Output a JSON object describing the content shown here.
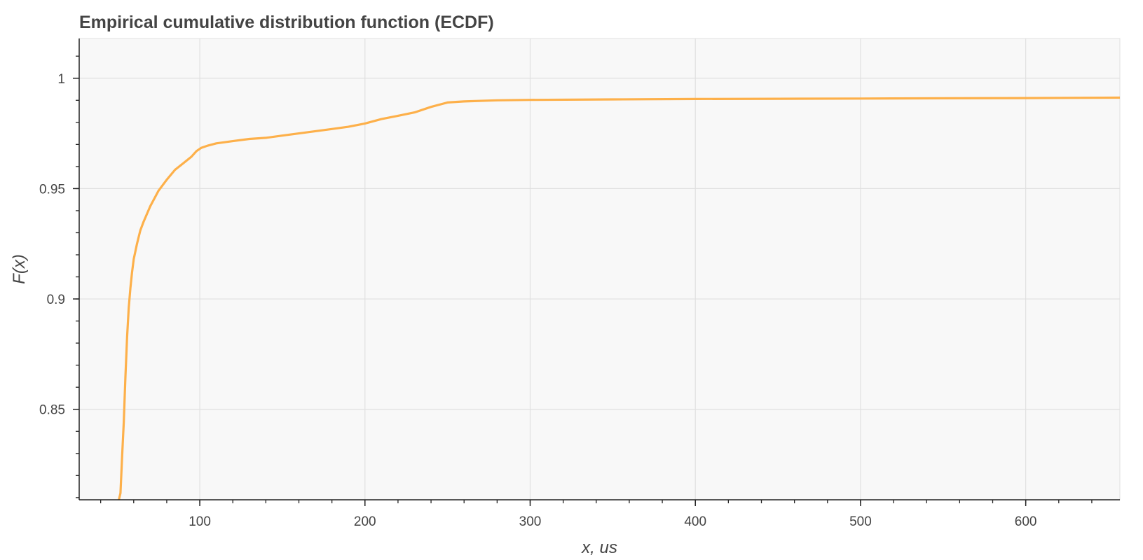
{
  "chart_data": {
    "type": "line",
    "title": "Empirical cumulative distribution function (ECDF)",
    "xlabel": "x, us",
    "ylabel": "F(x)",
    "xlim": [
      27,
      657
    ],
    "ylim": [
      0.809,
      1.018
    ],
    "grid": true,
    "x_ticks": [
      100,
      200,
      300,
      400,
      500,
      600
    ],
    "x_tick_labels": [
      "100",
      "200",
      "300",
      "400",
      "500",
      "600"
    ],
    "y_ticks": [
      0.85,
      0.9,
      0.95,
      1.0
    ],
    "y_tick_labels": [
      "0.85",
      "0.9",
      "0.95",
      "1"
    ],
    "colors": {
      "line": "#fdb04a",
      "plot_bg": "#f8f8f8",
      "grid": "#e0e0e0",
      "axis": "#222222",
      "text": "#444444"
    },
    "series": [
      {
        "x": [
          51,
          52,
          53,
          54,
          55,
          56,
          57,
          58,
          59,
          60,
          62,
          64,
          66,
          70,
          75,
          80,
          85,
          90,
          95,
          98,
          101,
          105,
          110,
          120,
          130,
          140,
          150,
          160,
          170,
          180,
          190,
          200,
          210,
          220,
          230,
          240,
          250,
          260,
          280,
          300,
          350,
          400,
          450,
          500,
          550,
          600,
          657
        ],
        "y": [
          0.809,
          0.812,
          0.829,
          0.844,
          0.865,
          0.883,
          0.896,
          0.905,
          0.912,
          0.918,
          0.925,
          0.931,
          0.935,
          0.942,
          0.949,
          0.954,
          0.9585,
          0.9615,
          0.9645,
          0.967,
          0.9685,
          0.9695,
          0.9705,
          0.9715,
          0.9725,
          0.973,
          0.974,
          0.975,
          0.976,
          0.977,
          0.978,
          0.9795,
          0.9815,
          0.983,
          0.9845,
          0.987,
          0.989,
          0.9895,
          0.99,
          0.9902,
          0.9904,
          0.9906,
          0.9907,
          0.9908,
          0.9909,
          0.991,
          0.9912
        ]
      }
    ]
  }
}
